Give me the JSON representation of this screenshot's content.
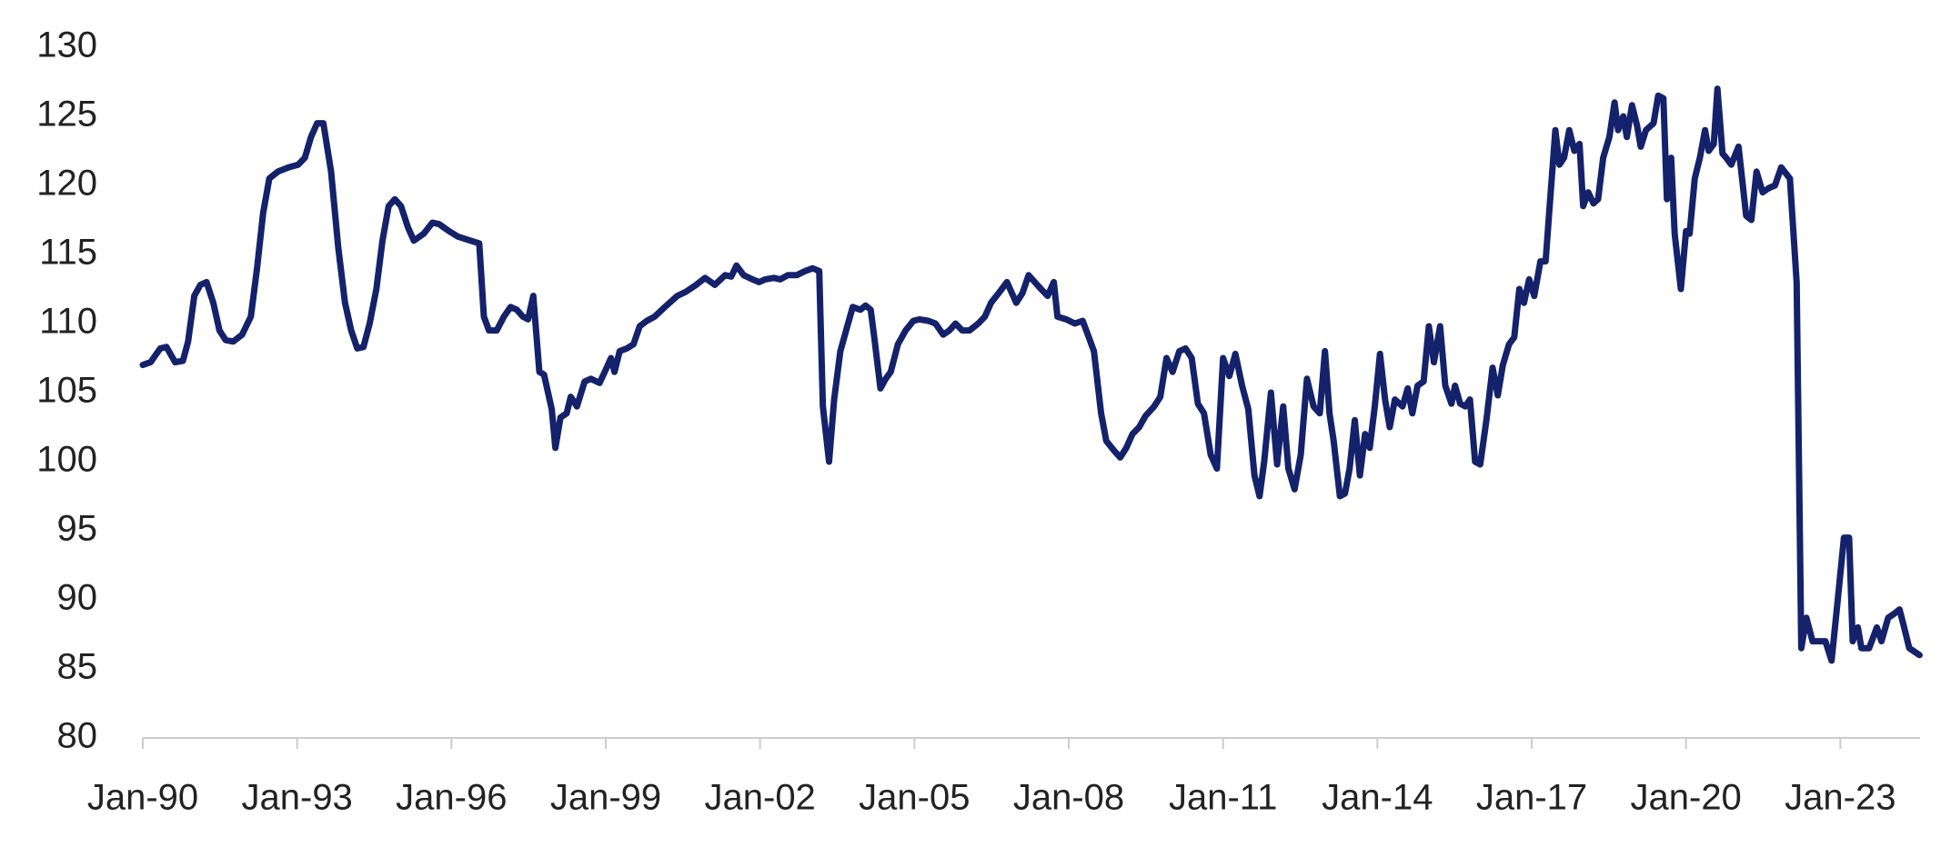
{
  "chart_data": {
    "type": "line",
    "color": "#14226b",
    "x": [
      1990.0,
      1990.15,
      1990.34,
      1990.46,
      1990.63,
      1990.78,
      1990.88,
      1991.0,
      1991.12,
      1991.24,
      1991.37,
      1991.49,
      1991.61,
      1991.76,
      1991.93,
      1992.1,
      1992.22,
      1992.34,
      1992.46,
      1992.63,
      1992.83,
      1993.02,
      1993.15,
      1993.27,
      1993.39,
      1993.51,
      1993.66,
      1993.8,
      1993.93,
      1994.05,
      1994.17,
      1994.29,
      1994.41,
      1994.54,
      1994.66,
      1994.78,
      1994.9,
      1995.02,
      1995.15,
      1995.27,
      1995.46,
      1995.63,
      1995.76,
      1995.95,
      1996.12,
      1996.37,
      1996.54,
      1996.63,
      1996.73,
      1996.88,
      1997.02,
      1997.15,
      1997.27,
      1997.39,
      1997.49,
      1997.59,
      1997.71,
      1997.8,
      1997.95,
      1998.02,
      1998.12,
      1998.24,
      1998.32,
      1998.44,
      1998.59,
      1998.71,
      1998.88,
      1998.98,
      1999.1,
      1999.17,
      1999.27,
      1999.41,
      1999.54,
      1999.66,
      1999.8,
      1999.95,
      2000.15,
      2000.39,
      2000.56,
      2000.76,
      2000.93,
      2001.12,
      2001.32,
      2001.44,
      2001.54,
      2001.68,
      2001.85,
      2001.98,
      2002.1,
      2002.27,
      2002.39,
      2002.54,
      2002.71,
      2002.88,
      2003.02,
      2003.15,
      2003.22,
      2003.34,
      2003.44,
      2003.56,
      2003.71,
      2003.8,
      2003.95,
      2004.05,
      2004.15,
      2004.22,
      2004.34,
      2004.44,
      2004.54,
      2004.68,
      2004.83,
      2004.98,
      2005.1,
      2005.27,
      2005.41,
      2005.56,
      2005.68,
      2005.8,
      2005.93,
      2006.07,
      2006.24,
      2006.37,
      2006.49,
      2006.66,
      2006.8,
      2006.98,
      2007.1,
      2007.22,
      2007.34,
      2007.46,
      2007.59,
      2007.71,
      2007.78,
      2007.95,
      2008.12,
      2008.27,
      2008.39,
      2008.49,
      2008.63,
      2008.73,
      2008.88,
      2009.0,
      2009.12,
      2009.24,
      2009.37,
      2009.49,
      2009.66,
      2009.78,
      2009.9,
      2010.02,
      2010.15,
      2010.27,
      2010.39,
      2010.51,
      2010.63,
      2010.76,
      2010.88,
      2011.0,
      2011.12,
      2011.24,
      2011.37,
      2011.49,
      2011.61,
      2011.71,
      2011.8,
      2011.93,
      2012.05,
      2012.17,
      2012.27,
      2012.39,
      2012.51,
      2012.63,
      2012.76,
      2012.88,
      2012.98,
      2013.07,
      2013.15,
      2013.27,
      2013.37,
      2013.46,
      2013.56,
      2013.66,
      2013.76,
      2013.85,
      2013.95,
      2014.05,
      2014.15,
      2014.24,
      2014.34,
      2014.49,
      2014.59,
      2014.68,
      2014.78,
      2014.9,
      2015.0,
      2015.1,
      2015.22,
      2015.32,
      2015.44,
      2015.51,
      2015.61,
      2015.71,
      2015.8,
      2015.9,
      2016.0,
      2016.12,
      2016.24,
      2016.34,
      2016.44,
      2016.56,
      2016.66,
      2016.76,
      2016.85,
      2016.95,
      2017.05,
      2017.17,
      2017.27,
      2017.34,
      2017.46,
      2017.54,
      2017.63,
      2017.73,
      2017.83,
      2017.93,
      2018.0,
      2018.1,
      2018.2,
      2018.29,
      2018.39,
      2018.51,
      2018.61,
      2018.68,
      2018.78,
      2018.85,
      2018.95,
      2019.05,
      2019.12,
      2019.22,
      2019.37,
      2019.46,
      2019.56,
      2019.63,
      2019.71,
      2019.78,
      2019.9,
      2020.0,
      2020.07,
      2020.17,
      2020.27,
      2020.37,
      2020.44,
      2020.54,
      2020.61,
      2020.71,
      2020.78,
      2020.88,
      2021.02,
      2021.17,
      2021.27,
      2021.37,
      2021.49,
      2021.61,
      2021.73,
      2021.85,
      2022.02,
      2022.15,
      2022.24,
      2022.34,
      2022.46,
      2022.59,
      2022.71,
      2022.83,
      2022.95,
      2023.07,
      2023.17,
      2023.24,
      2023.34,
      2023.41,
      2023.56,
      2023.71,
      2023.8,
      2023.93,
      2024.05,
      2024.15,
      2024.24,
      2024.34,
      2024.54
    ],
    "values": [
      107,
      107.2,
      108.2,
      108.3,
      107.2,
      107.3,
      108.7,
      112,
      112.8,
      113,
      111.5,
      109.5,
      108.8,
      108.7,
      109.2,
      110.5,
      114,
      118,
      120.5,
      121,
      121.3,
      121.5,
      122,
      123.5,
      124.5,
      124.5,
      121,
      115.5,
      111.5,
      109.5,
      108.2,
      108.3,
      110,
      112.5,
      116,
      118.5,
      119,
      118.5,
      117,
      116,
      116.5,
      117.3,
      117.2,
      116.7,
      116.3,
      116,
      115.8,
      110.5,
      109.5,
      109.5,
      110.5,
      111.2,
      111,
      110.5,
      110.3,
      112,
      106.5,
      106.3,
      103.8,
      101,
      103.2,
      103.5,
      104.7,
      104,
      105.8,
      106,
      105.7,
      106.5,
      107.5,
      106.5,
      108,
      108.2,
      108.5,
      109.8,
      110.2,
      110.5,
      111.2,
      112,
      112.3,
      112.8,
      113.3,
      112.8,
      113.5,
      113.4,
      114.2,
      113.5,
      113.2,
      113,
      113.2,
      113.3,
      113.2,
      113.5,
      113.5,
      113.8,
      114,
      113.8,
      104,
      100,
      104.5,
      108,
      110,
      111.2,
      111,
      111.3,
      111,
      109,
      105.3,
      106,
      106.5,
      108.5,
      109.5,
      110.2,
      110.3,
      110.2,
      110,
      109.2,
      109.5,
      110,
      109.5,
      109.5,
      110,
      110.5,
      111.5,
      112.3,
      113,
      111.5,
      112.2,
      113.5,
      113,
      112.5,
      112,
      113,
      110.5,
      110.3,
      110,
      110.2,
      109,
      108,
      103.5,
      101.5,
      100.8,
      100.3,
      101,
      102,
      102.5,
      103.3,
      104,
      104.7,
      107.5,
      106.5,
      108,
      108.2,
      107.5,
      104.2,
      103.5,
      100.5,
      99.5,
      107.5,
      106.2,
      107.8,
      105.5,
      103.8,
      99,
      97.5,
      100,
      105,
      99.8,
      104,
      99.5,
      98,
      100.5,
      106,
      104,
      103.5,
      108,
      103.5,
      101.5,
      97.5,
      97.7,
      99.5,
      103,
      99,
      102,
      101,
      104,
      107.8,
      104.5,
      102.5,
      104.5,
      104,
      105.3,
      103.5,
      105.5,
      105.8,
      109.8,
      107.2,
      109.8,
      105.5,
      104.2,
      105.5,
      104.2,
      104,
      104.5,
      100,
      99.8,
      103,
      106.8,
      104.8,
      107,
      108.5,
      109,
      112.5,
      111.5,
      113.2,
      112,
      114.5,
      114.5,
      118,
      124,
      121.5,
      122,
      124,
      122.5,
      123,
      118.5,
      119.5,
      118.7,
      119,
      122,
      123.5,
      126,
      124,
      125,
      123.5,
      125.8,
      124.3,
      122.8,
      124,
      124.5,
      126.5,
      126.3,
      119,
      122,
      116.5,
      112.5,
      116.7,
      116.5,
      120.5,
      122,
      124,
      122.5,
      123,
      127,
      122.3,
      122,
      121.5,
      122.8,
      117.8,
      117.5,
      121,
      119.5,
      119.8,
      120,
      121.3,
      120.5,
      113,
      86.5,
      88.7,
      87,
      87,
      87,
      85.6,
      90,
      94.5,
      94.5,
      87,
      88,
      86.5,
      86.5,
      88,
      87,
      88.7,
      89,
      89.3,
      88,
      86.5,
      86
    ],
    "xlim": [
      1990,
      2024.55
    ],
    "xticks": [
      {
        "value": 1990,
        "label": "Jan-90"
      },
      {
        "value": 1993,
        "label": "Jan-93"
      },
      {
        "value": 1996,
        "label": "Jan-96"
      },
      {
        "value": 1999,
        "label": "Jan-99"
      },
      {
        "value": 2002,
        "label": "Jan-02"
      },
      {
        "value": 2005,
        "label": "Jan-05"
      },
      {
        "value": 2008,
        "label": "Jan-08"
      },
      {
        "value": 2011,
        "label": "Jan-11"
      },
      {
        "value": 2014,
        "label": "Jan-14"
      },
      {
        "value": 2017,
        "label": "Jan-17"
      },
      {
        "value": 2020,
        "label": "Jan-20"
      },
      {
        "value": 2023,
        "label": "Jan-23"
      }
    ],
    "ylim": [
      80,
      130
    ],
    "yticks": [
      80,
      85,
      90,
      95,
      100,
      105,
      110,
      115,
      120,
      125,
      130
    ],
    "grid": false
  }
}
